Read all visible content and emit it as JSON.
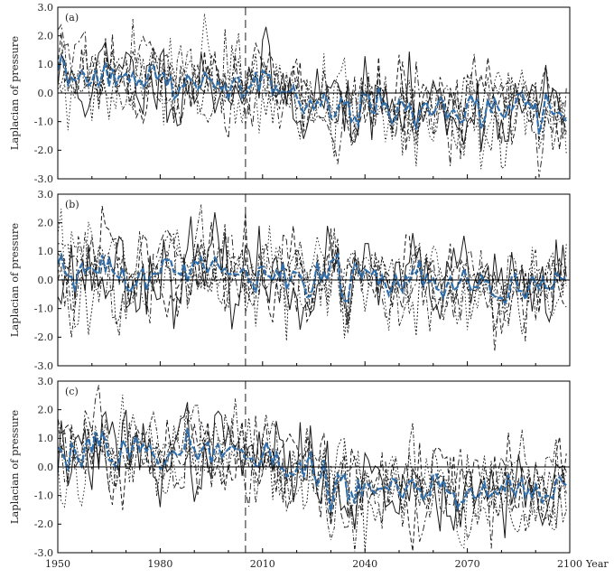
{
  "chart_data": [
    {
      "type": "line",
      "panel_label": "(a)",
      "ylabel": "Laplacian of pressure",
      "xlim": [
        1950,
        2100
      ],
      "ylim": [
        -3.0,
        3.0
      ],
      "y_ticks": [
        "3.0",
        "2.0",
        "1.0",
        "0.0",
        "-1.0",
        "-2.0",
        "-3.0"
      ],
      "reference_year": 2005,
      "zero_line": true,
      "mean_color": "#2f6fad",
      "trend": {
        "early_level": 0.45,
        "late_level": -0.55
      },
      "seed": 11
    },
    {
      "type": "line",
      "panel_label": "(b)",
      "ylabel": "Laplacian of pressure",
      "xlim": [
        1950,
        2100
      ],
      "ylim": [
        -3.0,
        3.0
      ],
      "y_ticks": [
        "3.0",
        "2.0",
        "1.0",
        "0.0",
        "-1.0",
        "-2.0",
        "-3.0"
      ],
      "reference_year": 2005,
      "zero_line": true,
      "mean_color": "#2f6fad",
      "trend": {
        "early_level": 0.25,
        "late_level": -0.2
      },
      "seed": 23
    },
    {
      "type": "line",
      "panel_label": "(c)",
      "ylabel": "Laplacian of pressure",
      "xlim": [
        1950,
        2100
      ],
      "ylim": [
        -3.0,
        3.0
      ],
      "y_ticks": [
        "3.0",
        "2.0",
        "1.0",
        "0.0",
        "-1.0",
        "-2.0",
        "-3.0"
      ],
      "reference_year": 2005,
      "zero_line": true,
      "mean_color": "#2f6fad",
      "trend": {
        "early_level": 0.5,
        "late_level": -0.7
      },
      "seed": 37
    }
  ],
  "x_axis": {
    "ticks": [
      "1950",
      "1980",
      "2010",
      "2040",
      "2070",
      "2100"
    ],
    "label": "Year"
  }
}
